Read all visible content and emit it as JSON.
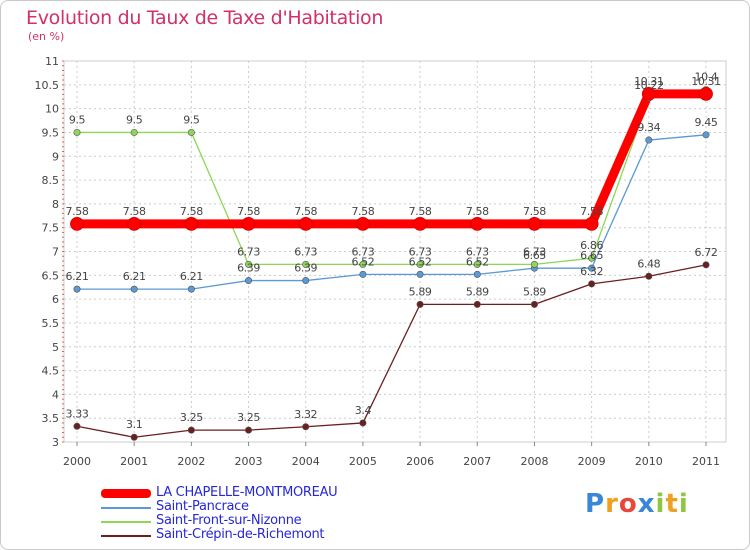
{
  "header": {
    "title": "Evolution du Taux de Taxe d'Habitation",
    "unit": "(en %)"
  },
  "chart_data": {
    "type": "line",
    "title": "Evolution du Taux de Taxe d'Habitation",
    "ylabel": "(en %)",
    "xlabel": "",
    "categories": [
      "2000",
      "2001",
      "2002",
      "2003",
      "2004",
      "2005",
      "2006",
      "2007",
      "2008",
      "2009",
      "2010",
      "2011"
    ],
    "ylim": [
      3,
      11
    ],
    "yticks": [
      "3",
      "3.5",
      "4",
      "4.5",
      "5",
      "5.5",
      "6",
      "6.5",
      "7",
      "7.5",
      "8",
      "8.5",
      "9",
      "9.5",
      "10",
      "10.5",
      "11"
    ],
    "grid": true,
    "legend_position": "bottom-left",
    "series": [
      {
        "name": "Saint-Crépin-de-Richemont",
        "color": "#6b1f1f",
        "values": [
          3.33,
          3.1,
          3.25,
          3.25,
          3.32,
          3.4,
          5.89,
          5.89,
          5.89,
          6.32,
          6.48,
          6.72
        ],
        "labels": [
          "3.33",
          "3.1",
          "3.25",
          "3.25",
          "3.32",
          "3.4",
          "5.89",
          "5.89",
          "5.89",
          "6.32",
          "6.48",
          "6.72"
        ]
      },
      {
        "name": "Saint-Pancrace",
        "color": "#5b9ad4",
        "values": [
          6.21,
          6.21,
          6.21,
          6.39,
          6.39,
          6.52,
          6.52,
          6.52,
          6.65,
          6.65,
          9.34,
          9.45
        ],
        "labels": [
          "6.21",
          "6.21",
          "6.21",
          "6.39",
          "6.39",
          "6.52",
          "6.52",
          "6.52",
          "6.65",
          "6.65",
          "9.34",
          "9.45"
        ]
      },
      {
        "name": "Saint-Front-sur-Nizonne",
        "color": "#8ed65a",
        "values": [
          9.5,
          9.5,
          9.5,
          6.73,
          6.73,
          6.73,
          6.73,
          6.73,
          6.73,
          6.86,
          10.22,
          10.4
        ],
        "labels": [
          "9.5",
          "9.5",
          "9.5",
          "6.73",
          "6.73",
          "6.73",
          "6.73",
          "6.73",
          "6.73",
          "6.86",
          "10.22",
          "10.4"
        ]
      },
      {
        "name": "LA CHAPELLE-MONTMOREAU",
        "color": "#ff0000",
        "values": [
          7.58,
          7.58,
          7.58,
          7.58,
          7.58,
          7.58,
          7.58,
          7.58,
          7.58,
          7.58,
          10.31,
          10.31
        ],
        "labels": [
          "7.58",
          "7.58",
          "7.58",
          "7.58",
          "7.58",
          "7.58",
          "7.58",
          "7.58",
          "7.58",
          "7.58",
          "10.31",
          "10.31"
        ]
      }
    ]
  },
  "legend": {
    "items": [
      {
        "label": "LA CHAPELLE-MONTMOREAU",
        "color": "#ff0000"
      },
      {
        "label": "Saint-Pancrace",
        "color": "#5b9ad4"
      },
      {
        "label": "Saint-Front-sur-Nizonne",
        "color": "#8ed65a"
      },
      {
        "label": "Saint-Crépin-de-Richemont",
        "color": "#6b1f1f"
      }
    ]
  },
  "logo": {
    "letters": [
      "P",
      "r",
      "o",
      "x",
      "i",
      "t",
      "i"
    ],
    "colors": [
      "#3a86d8",
      "#f0a020",
      "#e8483a",
      "#3a86d8",
      "#8dc63f",
      "#f0a020",
      "#8dc63f"
    ]
  }
}
